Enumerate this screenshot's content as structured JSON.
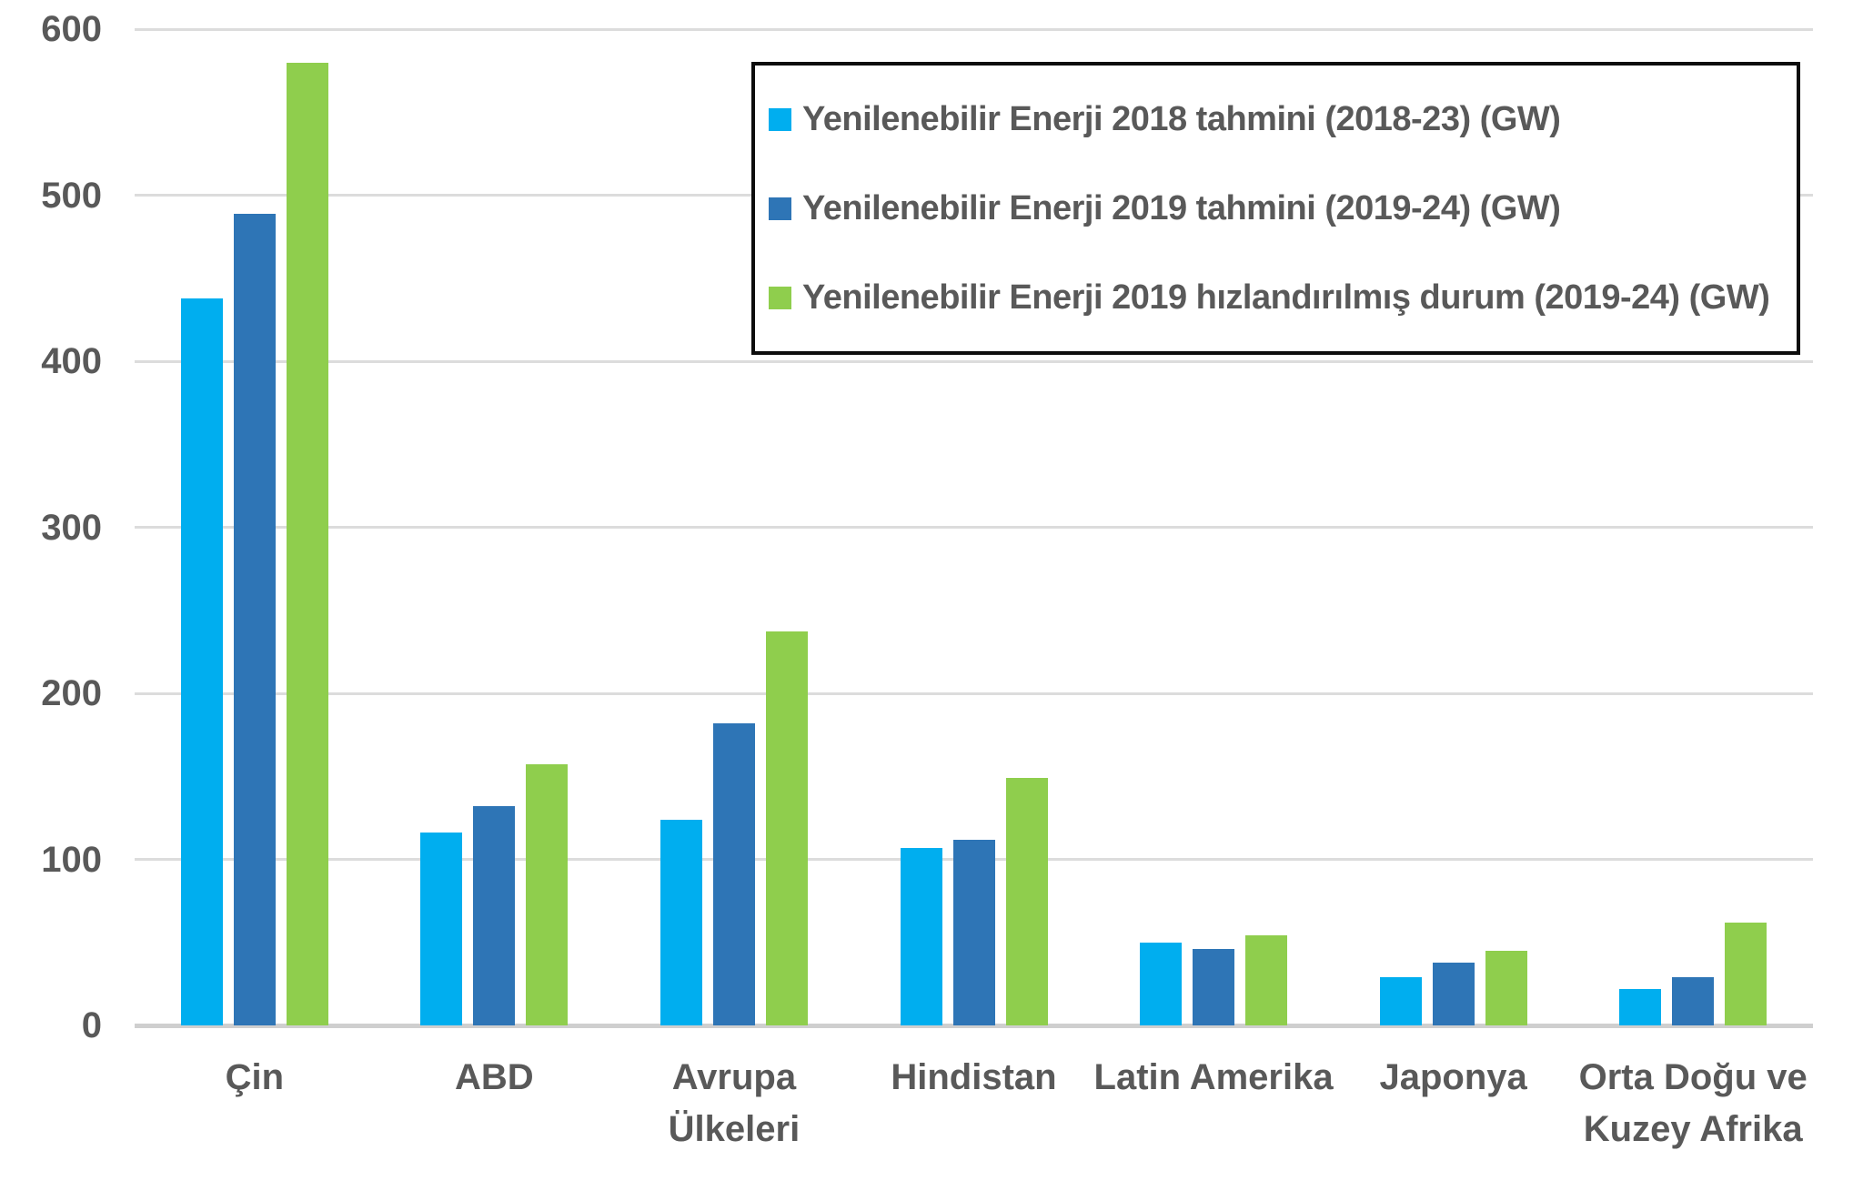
{
  "chart_data": {
    "type": "bar",
    "title": "",
    "xlabel": "",
    "ylabel": "",
    "ylim": [
      0,
      600
    ],
    "yticks": [
      0,
      100,
      200,
      300,
      400,
      500,
      600
    ],
    "grid": true,
    "legend_position": "top-right",
    "categories": [
      {
        "label": "Çin",
        "lines": [
          "Çin"
        ]
      },
      {
        "label": "ABD",
        "lines": [
          "ABD"
        ]
      },
      {
        "label": "Avrupa Ülkeleri",
        "lines": [
          "Avrupa",
          "Ülkeleri"
        ]
      },
      {
        "label": "Hindistan",
        "lines": [
          "Hindistan"
        ]
      },
      {
        "label": "Latin Amerika",
        "lines": [
          "Latin Amerika"
        ]
      },
      {
        "label": "Japonya",
        "lines": [
          "Japonya"
        ]
      },
      {
        "label": "Orta Doğu ve Kuzey Afrika",
        "lines": [
          "Orta Doğu ve",
          "Kuzey Afrika"
        ]
      }
    ],
    "series": [
      {
        "name": "Yenilenebilir Enerji 2018 tahmini (2018-23) (GW)",
        "color": "#00AEEF",
        "values": [
          438,
          116,
          124,
          107,
          50,
          29,
          22
        ]
      },
      {
        "name": "Yenilenebilir Enerji 2019 tahmini (2019-24) (GW)",
        "color": "#2E75B6",
        "values": [
          489,
          132,
          182,
          112,
          46,
          38,
          29
        ]
      },
      {
        "name": "Yenilenebilir Enerji 2019 hızlandırılmış durum (2019-24) (GW)",
        "color": "#8FCE4D",
        "values": [
          580,
          157,
          237,
          149,
          54,
          45,
          62
        ]
      }
    ]
  },
  "style": {
    "tick_text_color": "#595959",
    "gridline_color": "#dcdcdc",
    "zero_line_color": "#cfcfcf",
    "legend_border_color": "#0d0d0d",
    "background_color": "#ffffff"
  }
}
